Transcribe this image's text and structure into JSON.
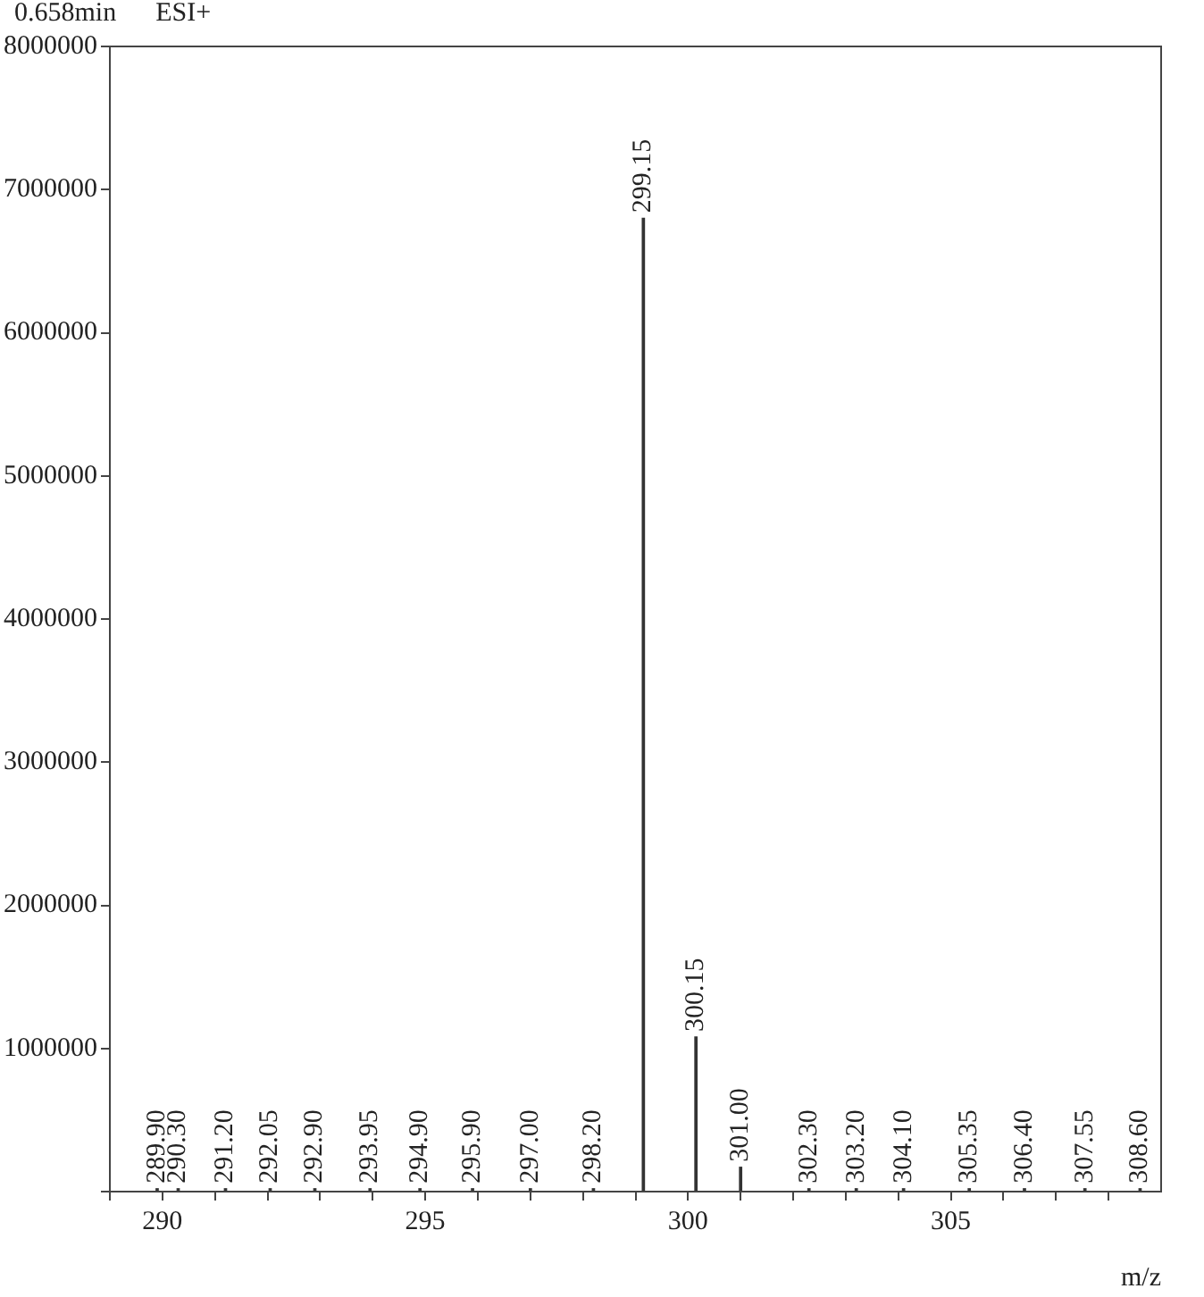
{
  "chart_data": {
    "type": "bar",
    "xlabel": "m/z",
    "annotations": [
      "0.658min",
      "ESI+",
      {
        "text": "289.90",
        "x": 289.9,
        "y": 20000
      },
      {
        "text": "290.30",
        "x": 290.3,
        "y": 20000
      },
      {
        "text": "291.20",
        "x": 291.2,
        "y": 20000
      },
      {
        "text": "292.05",
        "x": 292.05,
        "y": 20000
      },
      {
        "text": "292.90",
        "x": 292.9,
        "y": 20000
      },
      {
        "text": "293.95",
        "x": 293.95,
        "y": 20000
      },
      {
        "text": "294.90",
        "x": 294.9,
        "y": 20000
      },
      {
        "text": "295.90",
        "x": 295.9,
        "y": 20000
      },
      {
        "text": "297.00",
        "x": 297.0,
        "y": 20000
      },
      {
        "text": "298.20",
        "x": 298.2,
        "y": 20000
      },
      {
        "text": "299.15",
        "x": 299.15,
        "y": 6800000
      },
      {
        "text": "300.15",
        "x": 300.15,
        "y": 1080000
      },
      {
        "text": "301.00",
        "x": 301.0,
        "y": 170000
      },
      {
        "text": "302.30",
        "x": 302.3,
        "y": 20000
      },
      {
        "text": "303.20",
        "x": 303.2,
        "y": 20000
      },
      {
        "text": "304.10",
        "x": 304.1,
        "y": 20000
      },
      {
        "text": "305.35",
        "x": 305.35,
        "y": 20000
      },
      {
        "text": "306.40",
        "x": 306.4,
        "y": 20000
      },
      {
        "text": "307.55",
        "x": 307.55,
        "y": 20000
      },
      {
        "text": "308.60",
        "x": 308.6,
        "y": 20000
      }
    ],
    "x": [
      289.9,
      290.3,
      291.2,
      292.05,
      292.9,
      293.95,
      294.9,
      295.9,
      297.0,
      298.2,
      299.15,
      300.15,
      301.0,
      302.3,
      303.2,
      304.1,
      305.35,
      306.4,
      307.55,
      308.6
    ],
    "values": [
      20000,
      20000,
      20000,
      20000,
      20000,
      20000,
      20000,
      20000,
      20000,
      20000,
      6800000,
      1080000,
      170000,
      20000,
      20000,
      20000,
      20000,
      20000,
      20000,
      20000
    ],
    "color": "#333333",
    "xlim": [
      289,
      309
    ],
    "xticks": [
      {
        "value": 289,
        "label": null
      },
      290,
      {
        "value": 291,
        "label": null
      },
      {
        "value": 292,
        "label": null
      },
      {
        "value": 293,
        "label": null
      },
      {
        "value": 294,
        "label": null
      },
      295,
      {
        "value": 296,
        "label": null
      },
      {
        "value": 297,
        "label": null
      },
      {
        "value": 298,
        "label": null
      },
      {
        "value": 299,
        "label": null
      },
      300,
      {
        "value": 301,
        "label": null
      },
      {
        "value": 302,
        "label": null
      },
      {
        "value": 303,
        "label": null
      },
      {
        "value": 304,
        "label": null
      },
      305,
      {
        "value": 306,
        "label": null
      },
      {
        "value": 307,
        "label": null
      },
      {
        "value": 308,
        "label": null
      }
    ],
    "ylim": [
      0,
      8000000
    ],
    "yticks": [
      {
        "value": 0,
        "label": null
      },
      1000000,
      2000000,
      3000000,
      4000000,
      5000000,
      6000000,
      7000000,
      8000000
    ],
    "grid": false,
    "legend": false
  }
}
